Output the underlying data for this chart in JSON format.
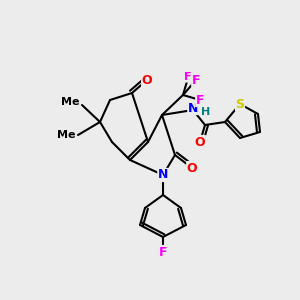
{
  "bg_color": "#ececec",
  "bond_color": "#000000",
  "atom_colors": {
    "O": "#ff0000",
    "N": "#0000ff",
    "F": "#ff00ff",
    "S": "#cccc00",
    "H": "#008080",
    "C": "#000000"
  },
  "font_size": 9,
  "bond_width": 1.5
}
